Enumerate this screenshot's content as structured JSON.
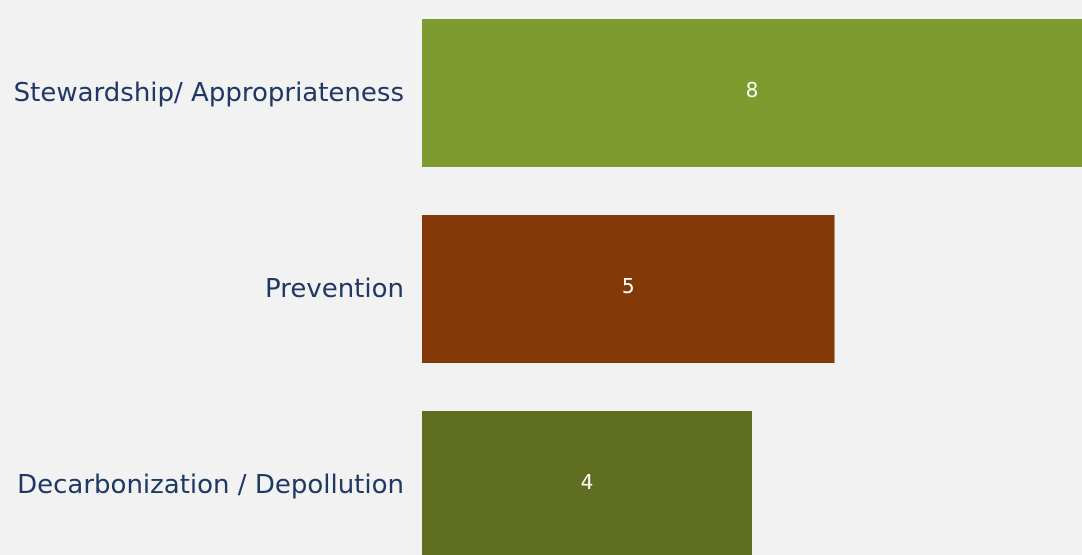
{
  "chart_data": {
    "type": "bar",
    "orientation": "horizontal",
    "categories": [
      "Stewardship/ Appropriateness",
      "Prevention",
      "Decarbonization / Depollution"
    ],
    "values": [
      8,
      5,
      4
    ],
    "data_labels": [
      "8",
      "5",
      "4"
    ],
    "colors": [
      "#7e9b30",
      "#843a08",
      "#5f6e21"
    ],
    "xlim": [
      0,
      8
    ],
    "grid": false,
    "legend": "none"
  },
  "background_color": "#f2f2f2",
  "label_color": "#1f3864"
}
